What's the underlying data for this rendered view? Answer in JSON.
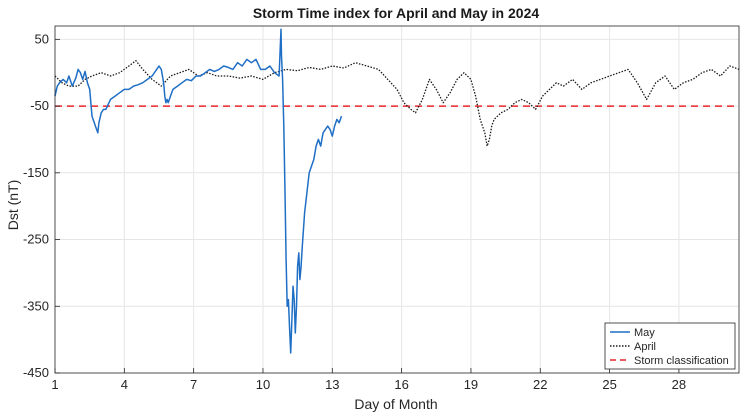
{
  "chart_data": {
    "type": "line",
    "title": "Storm Time index for April and May in 2024",
    "xlabel": "Day of Month",
    "ylabel": "Dst (nT)",
    "xlim": [
      1,
      30.6
    ],
    "ylim": [
      -450,
      70
    ],
    "xticks": [
      1,
      4,
      7,
      10,
      13,
      16,
      19,
      22,
      25,
      28
    ],
    "yticks": [
      50,
      -50,
      -150,
      -250,
      -350,
      -450
    ],
    "grid": true,
    "legend_position": "bottom-right",
    "threshold": {
      "name": "Storm classification",
      "value": -50,
      "color": "#e8262b",
      "style": "dashed"
    },
    "series": [
      {
        "name": "May",
        "color": "#1f6fc5",
        "style": "solid",
        "x": [
          1.0,
          1.1,
          1.2,
          1.35,
          1.5,
          1.6,
          1.75,
          1.9,
          2.0,
          2.1,
          2.2,
          2.3,
          2.4,
          2.5,
          2.6,
          2.65,
          2.7,
          2.75,
          2.8,
          2.85,
          2.9,
          3.0,
          3.1,
          3.2,
          3.4,
          3.6,
          3.8,
          4.0,
          4.2,
          4.4,
          4.6,
          4.8,
          5.0,
          5.2,
          5.4,
          5.5,
          5.6,
          5.7,
          5.75,
          5.8,
          5.85,
          5.9,
          6.0,
          6.1,
          6.3,
          6.5,
          6.7,
          6.9,
          7.1,
          7.3,
          7.5,
          7.7,
          7.9,
          8.1,
          8.3,
          8.5,
          8.7,
          8.9,
          9.1,
          9.3,
          9.5,
          9.7,
          9.9,
          10.1,
          10.3,
          10.5,
          10.7,
          10.75,
          10.78,
          10.8,
          10.85,
          10.9,
          10.95,
          11.0,
          11.05,
          11.1,
          11.15,
          11.2,
          11.25,
          11.3,
          11.35,
          11.4,
          11.45,
          11.5,
          11.55,
          11.6,
          11.65,
          11.7,
          11.8,
          11.9,
          12.0,
          12.1,
          12.2,
          12.3,
          12.4,
          12.5,
          12.6,
          12.7,
          12.8,
          12.9,
          13.0,
          13.1,
          13.2,
          13.3,
          13.4
        ],
        "y": [
          -35,
          -20,
          -15,
          -10,
          -15,
          -5,
          -20,
          -8,
          5,
          0,
          -10,
          2,
          -15,
          -25,
          -65,
          -70,
          -75,
          -80,
          -85,
          -90,
          -75,
          -60,
          -55,
          -55,
          -40,
          -35,
          -30,
          -25,
          -25,
          -20,
          -18,
          -15,
          -10,
          -5,
          5,
          10,
          5,
          -15,
          -35,
          -45,
          -40,
          -45,
          -35,
          -25,
          -20,
          -15,
          -10,
          -12,
          -5,
          -5,
          0,
          5,
          2,
          5,
          10,
          8,
          5,
          15,
          10,
          20,
          15,
          20,
          5,
          5,
          10,
          0,
          -5,
          40,
          65,
          25,
          -10,
          -80,
          -170,
          -280,
          -350,
          -340,
          -380,
          -420,
          -370,
          -320,
          -340,
          -390,
          -350,
          -290,
          -270,
          -310,
          -290,
          -260,
          -210,
          -180,
          -150,
          -140,
          -130,
          -110,
          -100,
          -110,
          -90,
          -85,
          -80,
          -85,
          -95,
          -80,
          -70,
          -75,
          -65
        ]
      },
      {
        "name": "April",
        "color": "#1a1a1a",
        "style": "dotted",
        "x": [
          1.0,
          1.3,
          1.6,
          2.0,
          2.3,
          2.6,
          3.0,
          3.4,
          3.8,
          4.2,
          4.5,
          4.8,
          5.2,
          5.6,
          6.0,
          6.4,
          6.8,
          7.2,
          7.6,
          8.0,
          8.5,
          9.0,
          9.5,
          10.0,
          10.5,
          11.0,
          11.5,
          12.0,
          12.5,
          13.0,
          13.5,
          14.0,
          14.5,
          15.0,
          15.4,
          15.8,
          16.1,
          16.4,
          16.6,
          16.9,
          17.2,
          17.5,
          17.8,
          18.1,
          18.4,
          18.7,
          19.0,
          19.2,
          19.4,
          19.6,
          19.7,
          19.8,
          19.9,
          20.0,
          20.3,
          20.6,
          20.9,
          21.2,
          21.5,
          21.8,
          22.1,
          22.4,
          22.7,
          23.0,
          23.4,
          23.8,
          24.2,
          24.6,
          25.0,
          25.4,
          25.8,
          26.2,
          26.6,
          27.0,
          27.4,
          27.8,
          28.2,
          28.6,
          29.0,
          29.4,
          29.8,
          30.2,
          30.6
        ],
        "y": [
          -5,
          -15,
          -20,
          -20,
          -10,
          -5,
          0,
          -5,
          0,
          10,
          18,
          5,
          -10,
          -20,
          -5,
          0,
          5,
          -5,
          0,
          -5,
          -5,
          -8,
          -5,
          -10,
          0,
          5,
          3,
          8,
          5,
          10,
          7,
          15,
          10,
          5,
          -10,
          -25,
          -45,
          -55,
          -60,
          -40,
          -10,
          -25,
          -45,
          -30,
          -10,
          0,
          -10,
          -35,
          -70,
          -90,
          -110,
          -100,
          -80,
          -70,
          -60,
          -55,
          -45,
          -40,
          -45,
          -55,
          -35,
          -25,
          -15,
          -20,
          -10,
          -25,
          -15,
          -10,
          -5,
          0,
          5,
          -15,
          -40,
          -15,
          -5,
          -25,
          -15,
          -10,
          0,
          5,
          -5,
          10,
          5
        ]
      }
    ]
  }
}
